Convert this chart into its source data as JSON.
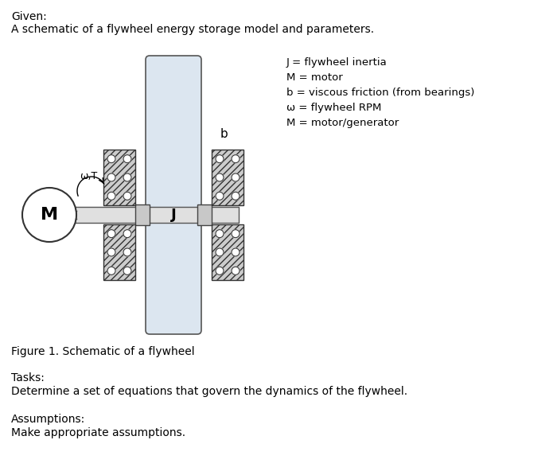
{
  "given_line1": "Given:",
  "given_line2": "A schematic of a flywheel energy storage model and parameters.",
  "legend_lines": [
    "J = flywheel inertia",
    "M = motor",
    "b = viscous friction (from bearings)",
    "ω = flywheel RPM",
    "M = motor/generator"
  ],
  "figure_caption": "Figure 1. Schematic of a flywheel",
  "tasks_line1": "Tasks:",
  "tasks_line2": "Determine a set of equations that govern the dynamics of the flywheel.",
  "assumptions_line1": "Assumptions:",
  "assumptions_line2": "Make appropriate assumptions.",
  "flywheel_color": "#dce6f0",
  "bearing_fill": "#d0d0d0",
  "shaft_fill": "#e0e0e0",
  "collar_fill": "#c8c8c8",
  "bg_color": "#ffffff",
  "motor_label": "M",
  "inertia_label": "J",
  "omega_label": "ω,T",
  "b_label": "b"
}
